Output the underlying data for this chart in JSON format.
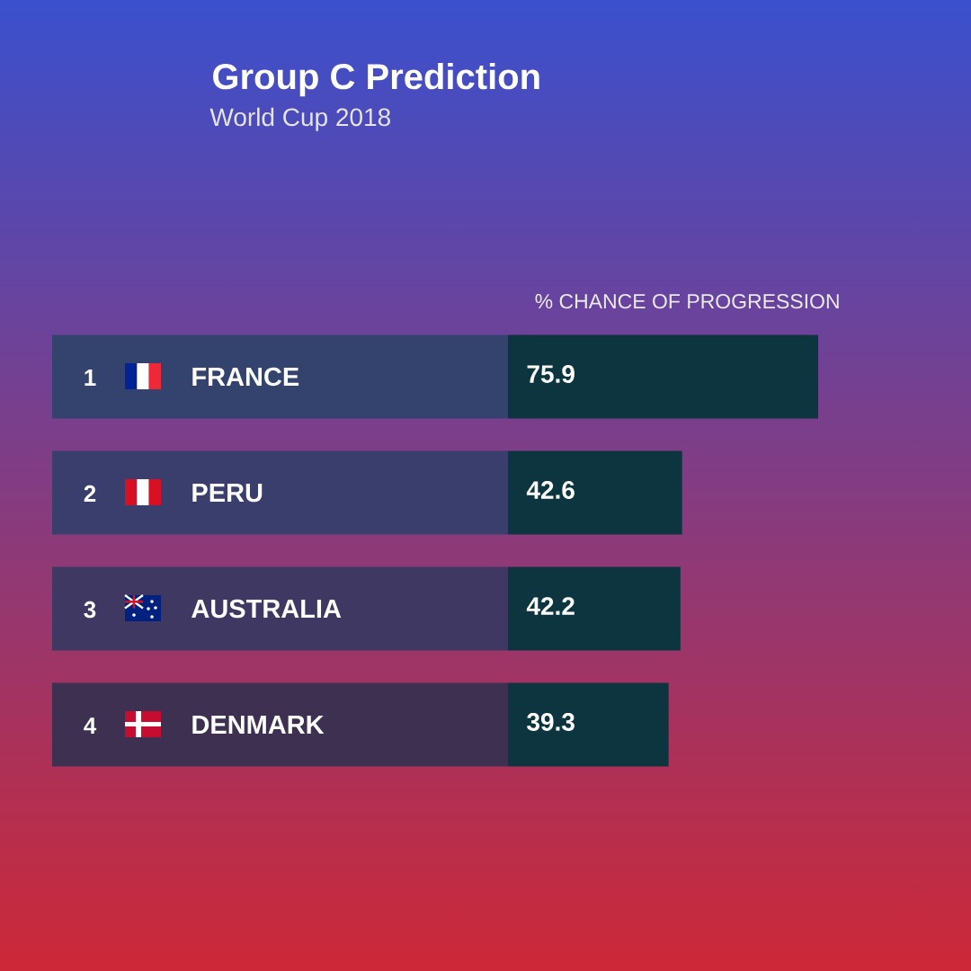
{
  "chart_data": {
    "type": "bar",
    "orientation": "horizontal",
    "title": "Group C Prediction",
    "subtitle": "World Cup 2018",
    "xlabel": "% CHANCE OF PROGRESSION",
    "categories": [
      "FRANCE",
      "PERU",
      "AUSTRALIA",
      "DENMARK"
    ],
    "values": [
      75.9,
      42.6,
      42.2,
      39.3
    ],
    "color": "#0c3540",
    "data_labels": true,
    "annotations": [
      "1",
      "2",
      "3",
      "4"
    ]
  }
}
